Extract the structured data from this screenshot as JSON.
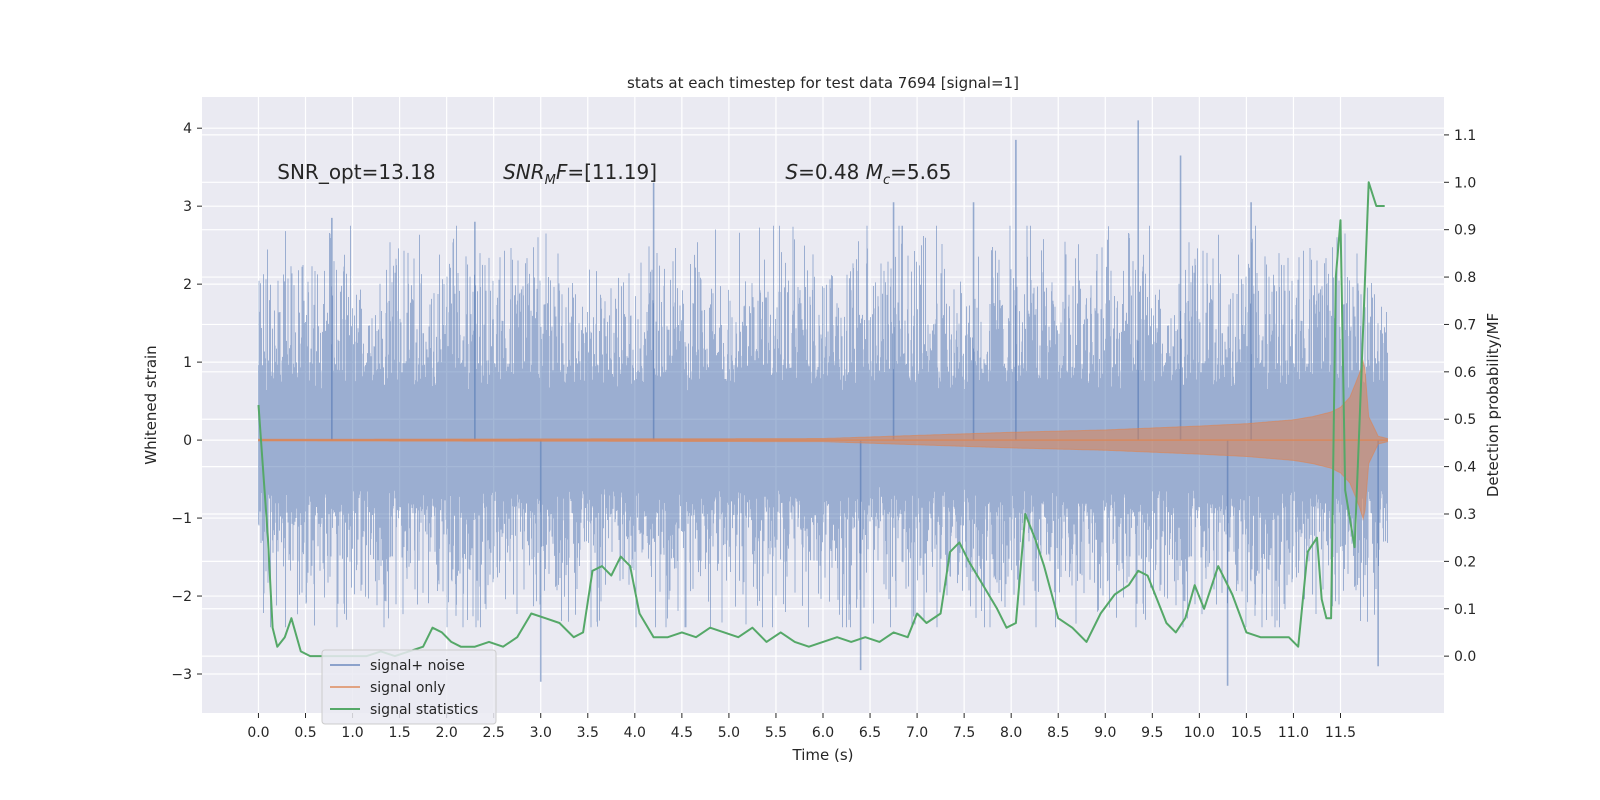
{
  "chart_data": {
    "type": "line",
    "title": "stats at each timestep for test data 7694 [signal=1]",
    "xlabel": "Time (s)",
    "ylabel": "Whitened strain",
    "y2label": "Detection probability/MF",
    "xlim": [
      -0.6,
      12.6
    ],
    "ylim": [
      -3.5,
      4.4
    ],
    "y2lim": [
      -0.12,
      1.18
    ],
    "x_ticks": [
      0.0,
      0.5,
      1.0,
      1.5,
      2.0,
      2.5,
      3.0,
      3.5,
      4.0,
      4.5,
      5.0,
      5.5,
      6.0,
      6.5,
      7.0,
      7.5,
      8.0,
      8.5,
      9.0,
      9.5,
      10.0,
      10.5,
      11.0,
      11.5
    ],
    "x_tick_labels": [
      "0.0",
      "0.5",
      "1.0",
      "1.5",
      "2.0",
      "2.5",
      "3.0",
      "3.5",
      "4.0",
      "4.5",
      "5.0",
      "5.5",
      "6.0",
      "6.5",
      "7.0",
      "7.5",
      "8.0",
      "8.5",
      "9.0",
      "9.5",
      "10.0",
      "10.5",
      "11.0",
      "11.5"
    ],
    "y_ticks": [
      -3,
      -2,
      -1,
      0,
      1,
      2,
      3,
      4
    ],
    "y_tick_labels": [
      "−3",
      "−2",
      "−1",
      "0",
      "1",
      "2",
      "3",
      "4"
    ],
    "y2_ticks": [
      0.0,
      0.1,
      0.2,
      0.3,
      0.4,
      0.5,
      0.6,
      0.7,
      0.8,
      0.9,
      1.0,
      1.1
    ],
    "y2_tick_labels": [
      "0.0",
      "0.1",
      "0.2",
      "0.3",
      "0.4",
      "0.5",
      "0.6",
      "0.7",
      "0.8",
      "0.9",
      "1.0",
      "1.1"
    ],
    "grid": true,
    "legend_position": "bottom-left",
    "colors": {
      "background": "#eaeaf2",
      "grid": "#ffffff",
      "noise": "#4c72b0",
      "signal": "#dd8452",
      "stats": "#55a868"
    },
    "annotations": [
      {
        "name": "snr-opt",
        "parts": [
          {
            "t": "SNR_opt=13.18",
            "italic": false
          }
        ],
        "x": 0.2,
        "y": 3.35
      },
      {
        "name": "snr-mf",
        "parts": [
          {
            "t": "SNR",
            "italic": true
          },
          {
            "t": "M",
            "italic": true,
            "sub": true
          },
          {
            "t": "F",
            "italic": true
          },
          {
            "t": "=[11.19]",
            "italic": false
          }
        ],
        "x": 2.6,
        "y": 3.35
      },
      {
        "name": "s-mc",
        "parts": [
          {
            "t": "S",
            "italic": true
          },
          {
            "t": "=0.48   ",
            "italic": false
          },
          {
            "t": "M",
            "italic": true
          },
          {
            "t": "c",
            "italic": true,
            "sub": true
          },
          {
            "t": "=5.65",
            "italic": false
          }
        ],
        "x": 5.6,
        "y": 3.35
      }
    ],
    "series": [
      {
        "name": "signal+ noise",
        "axis": "left",
        "style": "noise",
        "x_range": [
          0.0,
          12.0
        ],
        "envelope_note": "dense noise, typical range about -1.9 to 2.3, peaks near 4.1 at t=9.35",
        "spikes": [
          {
            "x": 0.78,
            "y": 2.85
          },
          {
            "x": 2.3,
            "y": 2.8
          },
          {
            "x": 3.0,
            "y": -3.1
          },
          {
            "x": 4.2,
            "y": 3.3
          },
          {
            "x": 6.4,
            "y": -2.95
          },
          {
            "x": 6.75,
            "y": 3.05
          },
          {
            "x": 7.6,
            "y": 3.05
          },
          {
            "x": 8.05,
            "y": 3.85
          },
          {
            "x": 9.35,
            "y": 4.1
          },
          {
            "x": 9.8,
            "y": 3.65
          },
          {
            "x": 10.3,
            "y": -3.15
          },
          {
            "x": 10.55,
            "y": 3.05
          },
          {
            "x": 11.9,
            "y": -2.9
          }
        ]
      },
      {
        "name": "signal only",
        "axis": "left",
        "style": "chirp",
        "x_range": [
          0.0,
          12.0
        ],
        "envelope": {
          "x": [
            0.0,
            6.0,
            7.0,
            8.0,
            9.0,
            10.0,
            10.5,
            11.0,
            11.2,
            11.4,
            11.5,
            11.6,
            11.7,
            11.75,
            11.8,
            11.9,
            12.0
          ],
          "amp": [
            0.01,
            0.02,
            0.06,
            0.1,
            0.13,
            0.18,
            0.21,
            0.26,
            0.3,
            0.36,
            0.42,
            0.55,
            0.85,
            1.05,
            0.3,
            0.05,
            0.02
          ]
        }
      },
      {
        "name": "signal statistics",
        "axis": "right",
        "style": "line",
        "x": [
          0.0,
          0.1,
          0.15,
          0.2,
          0.28,
          0.35,
          0.45,
          0.55,
          0.65,
          0.8,
          1.0,
          1.15,
          1.3,
          1.45,
          1.6,
          1.75,
          1.85,
          1.95,
          2.05,
          2.15,
          2.3,
          2.45,
          2.6,
          2.75,
          2.9,
          3.05,
          3.2,
          3.35,
          3.45,
          3.55,
          3.65,
          3.75,
          3.85,
          3.95,
          4.05,
          4.2,
          4.35,
          4.5,
          4.65,
          4.8,
          4.95,
          5.1,
          5.25,
          5.4,
          5.55,
          5.7,
          5.85,
          6.0,
          6.15,
          6.3,
          6.45,
          6.6,
          6.75,
          6.9,
          7.0,
          7.1,
          7.25,
          7.35,
          7.45,
          7.55,
          7.7,
          7.85,
          7.95,
          8.05,
          8.15,
          8.25,
          8.35,
          8.5,
          8.65,
          8.8,
          8.95,
          9.1,
          9.25,
          9.35,
          9.45,
          9.55,
          9.65,
          9.75,
          9.85,
          9.95,
          10.05,
          10.2,
          10.35,
          10.5,
          10.65,
          10.8,
          10.95,
          11.05,
          11.15,
          11.25,
          11.3,
          11.35,
          11.4,
          11.45,
          11.5,
          11.55,
          11.65,
          11.7,
          11.8,
          11.88,
          11.97
        ],
        "y": [
          0.53,
          0.25,
          0.06,
          0.02,
          0.04,
          0.08,
          0.01,
          0.0,
          0.0,
          0.0,
          0.0,
          0.0,
          0.01,
          0.0,
          0.01,
          0.02,
          0.06,
          0.05,
          0.03,
          0.02,
          0.02,
          0.03,
          0.02,
          0.04,
          0.09,
          0.08,
          0.07,
          0.04,
          0.05,
          0.18,
          0.19,
          0.17,
          0.21,
          0.19,
          0.09,
          0.04,
          0.04,
          0.05,
          0.04,
          0.06,
          0.05,
          0.04,
          0.06,
          0.03,
          0.05,
          0.03,
          0.02,
          0.03,
          0.04,
          0.03,
          0.04,
          0.03,
          0.05,
          0.04,
          0.09,
          0.07,
          0.09,
          0.22,
          0.24,
          0.2,
          0.15,
          0.1,
          0.06,
          0.07,
          0.3,
          0.25,
          0.19,
          0.08,
          0.06,
          0.03,
          0.09,
          0.13,
          0.15,
          0.18,
          0.17,
          0.12,
          0.07,
          0.05,
          0.08,
          0.15,
          0.1,
          0.19,
          0.13,
          0.05,
          0.04,
          0.04,
          0.04,
          0.02,
          0.22,
          0.25,
          0.12,
          0.08,
          0.08,
          0.8,
          0.92,
          0.35,
          0.23,
          0.48,
          1.0,
          0.95,
          0.95
        ]
      }
    ]
  }
}
